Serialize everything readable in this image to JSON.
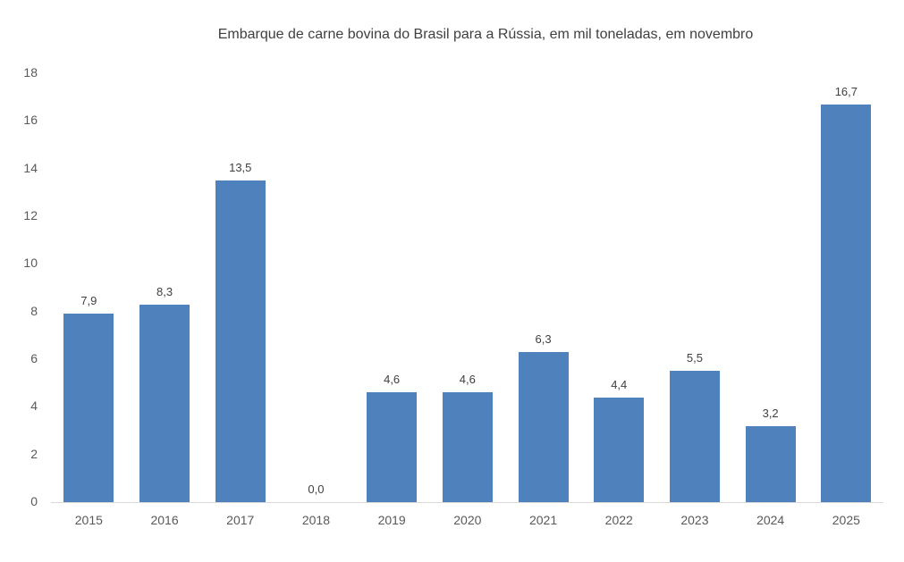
{
  "chart_data": {
    "type": "bar",
    "title": "Embarque de carne bovina do Brasil para a Rússia, em mil toneladas, em novembro",
    "xlabel": "",
    "ylabel": "",
    "categories": [
      "2015",
      "2016",
      "2017",
      "2018",
      "2019",
      "2020",
      "2021",
      "2022",
      "2023",
      "2024",
      "2025"
    ],
    "values": [
      7.9,
      8.3,
      13.5,
      0.0,
      4.6,
      4.6,
      6.3,
      4.4,
      5.5,
      3.2,
      16.7
    ],
    "value_labels": [
      "7,9",
      "8,3",
      "13,5",
      "0,0",
      "4,6",
      "4,6",
      "6,3",
      "4,4",
      "5,5",
      "3,2",
      "16,7"
    ],
    "ylim": [
      0,
      18
    ],
    "yticks": [
      "0",
      "2",
      "4",
      "6",
      "8",
      "10",
      "12",
      "14",
      "16",
      "18"
    ],
    "grid": false,
    "legend": null,
    "colors": {
      "bar": "#4F81BD",
      "axis": "#D9D9D9",
      "text": "#595959"
    }
  }
}
